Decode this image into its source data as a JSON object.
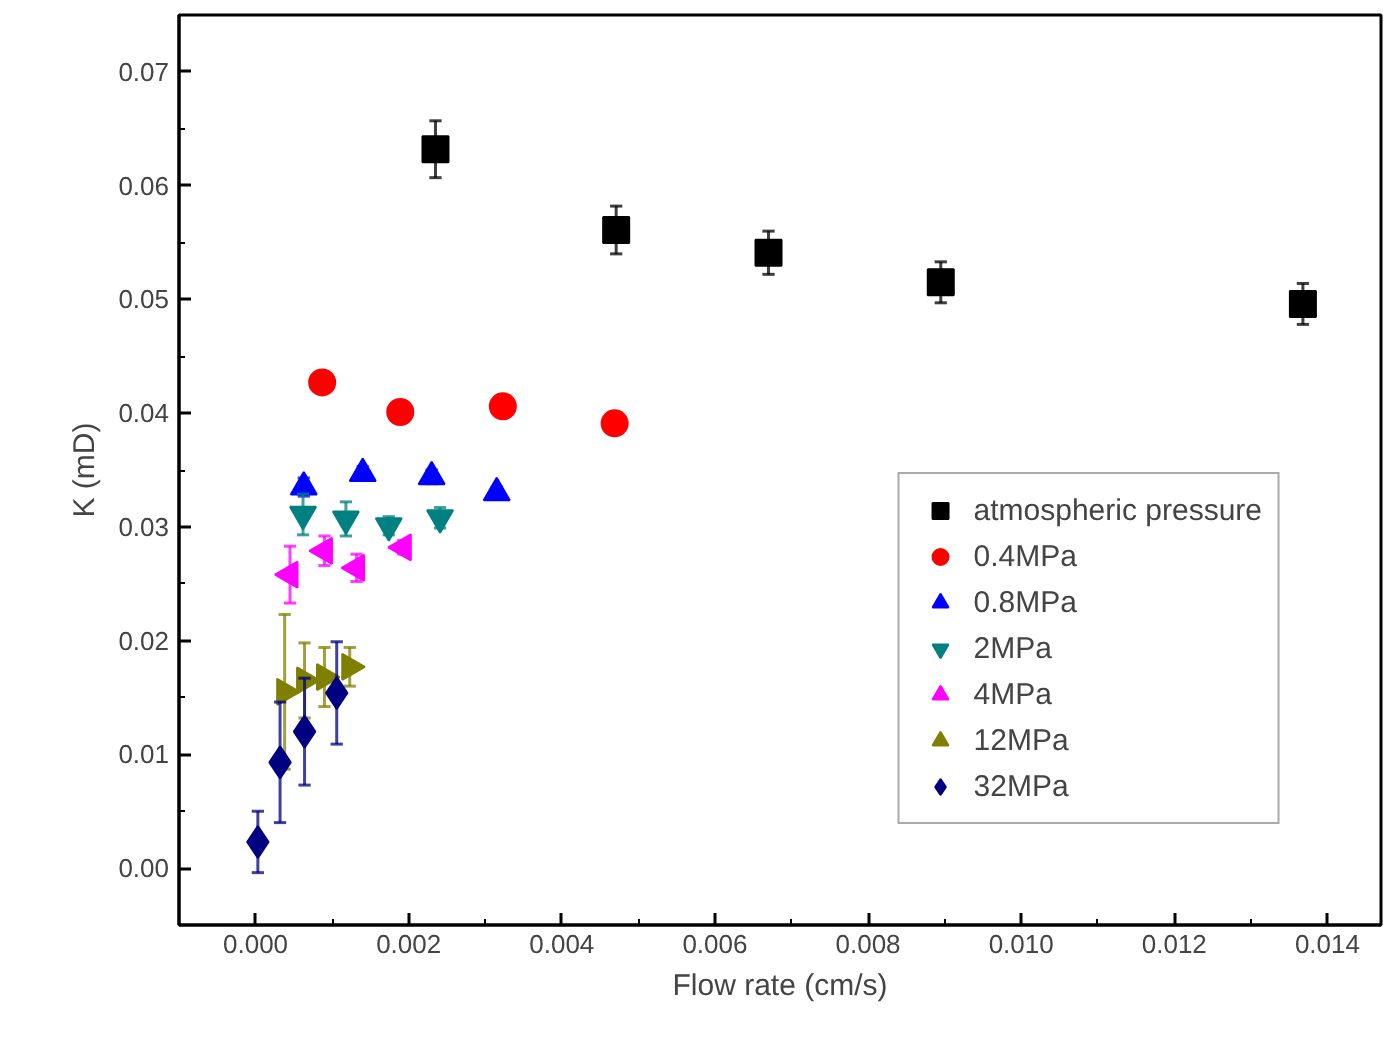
{
  "chart_data": {
    "type": "scatter",
    "xlabel": "Flow rate (cm/s)",
    "ylabel": "K (mD)",
    "xlim": [
      -0.001,
      0.0147
    ],
    "ylim": [
      -0.005,
      0.075
    ],
    "xticks": [
      {
        "value": 0,
        "label": "0.000"
      },
      {
        "value": 0.002,
        "label": "0.002"
      },
      {
        "value": 0.004,
        "label": "0.004"
      },
      {
        "value": 0.006,
        "label": "0.006"
      },
      {
        "value": 0.008,
        "label": "0.008"
      },
      {
        "value": 0.01,
        "label": "0.010"
      },
      {
        "value": 0.012,
        "label": "0.012"
      },
      {
        "value": 0.014,
        "label": "0.014"
      }
    ],
    "yticks": [
      {
        "value": 0,
        "label": "0.00"
      },
      {
        "value": 0.01,
        "label": "0.01"
      },
      {
        "value": 0.02,
        "label": "0.02"
      },
      {
        "value": 0.03,
        "label": "0.03"
      },
      {
        "value": 0.04,
        "label": "0.04"
      },
      {
        "value": 0.05,
        "label": "0.05"
      },
      {
        "value": 0.06,
        "label": "0.06"
      },
      {
        "value": 0.07,
        "label": "0.07"
      }
    ],
    "grid": false,
    "legend": "bottom right",
    "series": [
      {
        "name": "atmospheric pressure",
        "color": "#000000",
        "marker": "square",
        "x": [
          0.00235,
          0.00471,
          0.0067,
          0.00895,
          0.01368
        ],
        "values": [
          0.0632,
          0.0561,
          0.0541,
          0.0515,
          0.0496
        ],
        "errors": [
          0.0025,
          0.0021,
          0.0019,
          0.0018,
          0.0018
        ]
      },
      {
        "name": "0.4MPa",
        "color": "#ff0000",
        "marker": "circle",
        "x": [
          0.00087,
          0.00189,
          0.00323,
          0.00469
        ],
        "values": [
          0.0427,
          0.0401,
          0.0406,
          0.0391
        ],
        "errors": [
          0.0007,
          0.0006,
          0.0006,
          0.0005
        ]
      },
      {
        "name": "0.8MPa",
        "color": "#0000ff",
        "marker": "triangle",
        "x": [
          0.00063,
          0.0014,
          0.0023,
          0.00315
        ],
        "values": [
          0.0335,
          0.0347,
          0.0344,
          0.033
        ],
        "errors": [
          0.0008,
          0.0006,
          0.0006,
          0.0005
        ]
      },
      {
        "name": "2MPa",
        "color": "#008080",
        "marker": "triangle_down",
        "x": [
          0.00062,
          0.00118,
          0.00174,
          0.00241
        ],
        "values": [
          0.0311,
          0.0307,
          0.0301,
          0.0308
        ],
        "errors": [
          0.0018,
          0.0015,
          0.0008,
          0.0009
        ]
      },
      {
        "name": "4MPa",
        "color": "#ff00ff",
        "marker": "triangle_left",
        "x": [
          0.00045,
          0.0009,
          0.00132,
          0.00193
        ],
        "values": [
          0.0258,
          0.0279,
          0.0264,
          0.0282
        ],
        "errors": [
          0.0025,
          0.0013,
          0.0012,
          0.0006
        ]
      },
      {
        "name": "12MPa",
        "color": "#808000",
        "marker": "triangle_right",
        "x": [
          0.00038,
          0.00064,
          0.0009,
          0.00123
        ],
        "values": [
          0.0155,
          0.0165,
          0.0168,
          0.0177
        ],
        "errors": [
          0.0068,
          0.0033,
          0.0026,
          0.0017
        ]
      },
      {
        "name": "32MPa",
        "color": "#000080",
        "marker": "diamond",
        "x": [
          3e-05,
          0.00032,
          0.00064,
          0.00106
        ],
        "values": [
          0.0023,
          0.0093,
          0.012,
          0.0154
        ],
        "errors": [
          0.0027,
          0.0053,
          0.0047,
          0.0045
        ]
      }
    ]
  }
}
